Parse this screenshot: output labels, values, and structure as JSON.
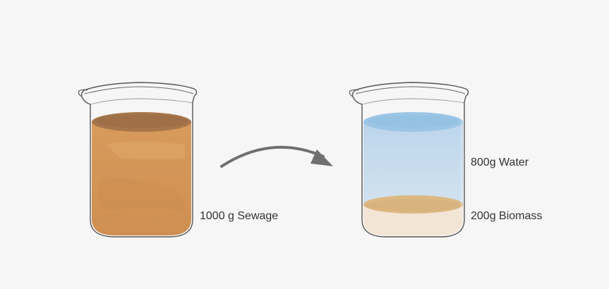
{
  "labels": {
    "sewage": "1000 g Sewage",
    "water": "800g Water",
    "biomass": "200g Biomass"
  },
  "colors": {
    "background": "#f6f6f6",
    "sewage": "#d49a5e",
    "water": "#c9dced",
    "water_surface": "#9cc6e6",
    "biomass": "#dcb883",
    "biomass_bottom": "#f3e5d6",
    "arrow": "#6f6f6f",
    "glass_outline": "#555555"
  }
}
